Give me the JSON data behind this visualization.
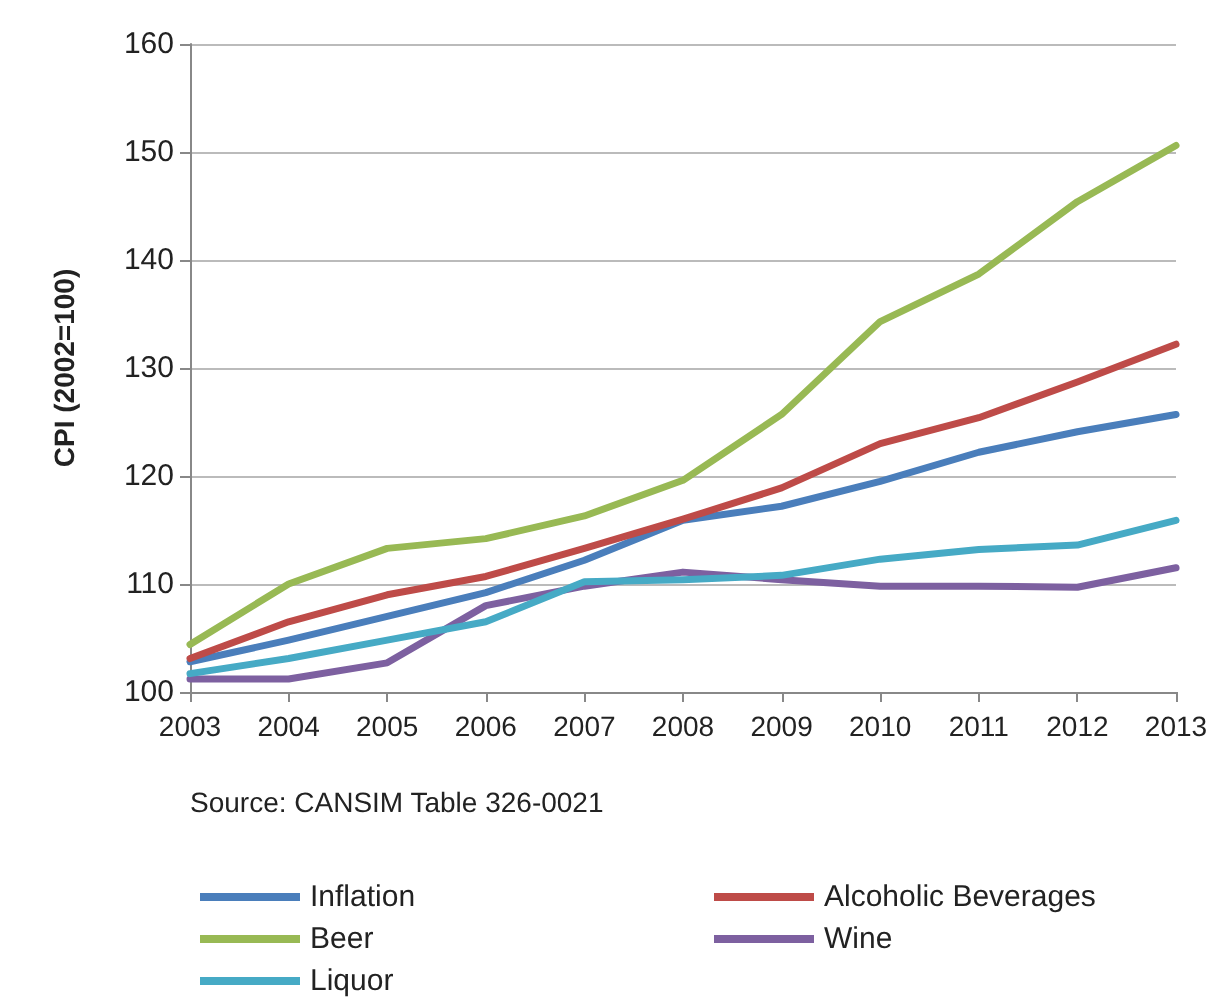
{
  "chart_data": {
    "type": "line",
    "ylabel": "CPI (2002=100)",
    "categories": [
      "2003",
      "2004",
      "2005",
      "2006",
      "2007",
      "2008",
      "2009",
      "2010",
      "2011",
      "2012",
      "2013"
    ],
    "series": [
      {
        "name": "Inflation",
        "color": "#4a7ebb",
        "values": [
          102.8,
          104.8,
          107,
          109.2,
          112.2,
          115.9,
          117.2,
          119.5,
          122.2,
          124.1,
          125.7
        ]
      },
      {
        "name": "Alcoholic Beverages",
        "color": "#be4b48",
        "values": [
          103.1,
          106.5,
          109,
          110.7,
          113.3,
          116,
          118.9,
          123,
          125.4,
          128.7,
          132.2
        ]
      },
      {
        "name": "Beer",
        "color": "#98b954",
        "values": [
          104.4,
          110,
          113.3,
          114.2,
          116.3,
          119.6,
          125.7,
          134.3,
          138.7,
          145.4,
          150.6
        ]
      },
      {
        "name": "Wine",
        "color": "#7d60a0",
        "values": [
          101.2,
          101.2,
          102.7,
          108,
          109.8,
          111.1,
          110.4,
          109.8,
          109.8,
          109.7,
          111.5
        ]
      },
      {
        "name": "Liquor",
        "color": "#46aac5",
        "values": [
          101.7,
          103.1,
          104.8,
          106.5,
          110.2,
          110.4,
          110.8,
          112.3,
          113.2,
          113.6,
          115.9
        ]
      }
    ],
    "ylim": [
      100,
      160
    ],
    "yticks": [
      100,
      110,
      120,
      130,
      140,
      150,
      160
    ],
    "grid": "y",
    "legend": "bottom",
    "marker": "none",
    "line_style": "solid",
    "annotations": [
      "Source: CANSIM Table 326-0021"
    ]
  }
}
